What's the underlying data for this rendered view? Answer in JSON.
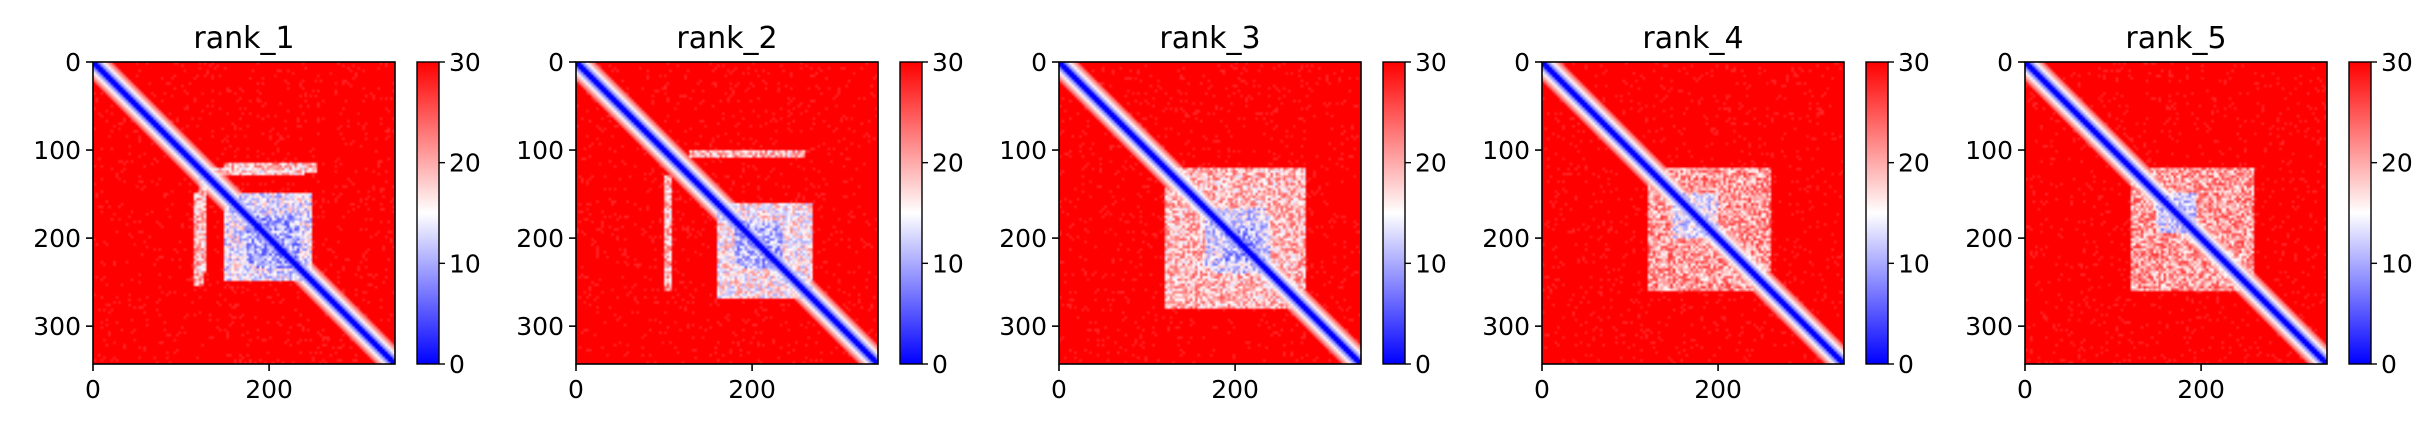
{
  "chart_data": [
    {
      "type": "heatmap",
      "title": "rank_1",
      "matrix_size": 343,
      "xlim": [
        0,
        343
      ],
      "ylim": [
        343,
        0
      ],
      "x_ticks": [
        0,
        200
      ],
      "y_ticks": [
        0,
        100,
        200,
        300
      ],
      "colorbar": {
        "min": 0,
        "max": 30,
        "ticks": [
          0,
          10,
          20,
          30
        ],
        "colormap": "bwr"
      },
      "features": {
        "diagonal": true,
        "blue_blocks": [
          {
            "x0": 150,
            "x1": 250,
            "y0": 165,
            "y1": 250,
            "value": 8
          },
          {
            "x0": 175,
            "x1": 235,
            "y0": 185,
            "y1": 230,
            "value": 4
          },
          {
            "x0": 120,
            "x1": 130,
            "y0": 120,
            "y1": 240,
            "value": 12
          },
          {
            "x0": 150,
            "x1": 255,
            "y0": 115,
            "y1": 125,
            "value": 13
          }
        ]
      }
    },
    {
      "type": "heatmap",
      "title": "rank_2",
      "matrix_size": 343,
      "xlim": [
        0,
        343
      ],
      "ylim": [
        343,
        0
      ],
      "x_ticks": [
        0,
        200
      ],
      "y_ticks": [
        0,
        100,
        200,
        300
      ],
      "colorbar": {
        "min": 0,
        "max": 30,
        "ticks": [
          0,
          10,
          20,
          30
        ],
        "colormap": "bwr"
      },
      "features": {
        "diagonal": true,
        "blue_blocks": [
          {
            "x0": 160,
            "x1": 265,
            "y0": 160,
            "y1": 270,
            "value": 10
          },
          {
            "x0": 180,
            "x1": 235,
            "y0": 185,
            "y1": 230,
            "value": 5
          },
          {
            "x0": 100,
            "x1": 110,
            "y0": 130,
            "y1": 260,
            "value": 13
          }
        ]
      }
    },
    {
      "type": "heatmap",
      "title": "rank_3",
      "matrix_size": 343,
      "xlim": [
        0,
        343
      ],
      "ylim": [
        343,
        0
      ],
      "x_ticks": [
        0,
        200
      ],
      "y_ticks": [
        0,
        100,
        200,
        300
      ],
      "colorbar": {
        "min": 0,
        "max": 30,
        "ticks": [
          0,
          10,
          20,
          30
        ],
        "colormap": "bwr"
      },
      "features": {
        "diagonal": true,
        "blue_blocks": [
          {
            "x0": 120,
            "x1": 280,
            "y0": 120,
            "y1": 280,
            "value": 13
          },
          {
            "x0": 165,
            "x1": 240,
            "y0": 175,
            "y1": 235,
            "value": 7
          },
          {
            "x0": 190,
            "x1": 225,
            "y0": 190,
            "y1": 225,
            "value": 4
          }
        ]
      }
    },
    {
      "type": "heatmap",
      "title": "rank_4",
      "matrix_size": 343,
      "xlim": [
        0,
        343
      ],
      "ylim": [
        343,
        0
      ],
      "x_ticks": [
        0,
        200
      ],
      "y_ticks": [
        0,
        100,
        200,
        300
      ],
      "colorbar": {
        "min": 0,
        "max": 30,
        "ticks": [
          0,
          10,
          20,
          30
        ],
        "colormap": "bwr"
      },
      "features": {
        "diagonal": true,
        "blue_blocks": [
          {
            "x0": 120,
            "x1": 260,
            "y0": 120,
            "y1": 260,
            "value": 15
          },
          {
            "x0": 150,
            "x1": 200,
            "y0": 150,
            "y1": 200,
            "value": 8
          }
        ]
      }
    },
    {
      "type": "heatmap",
      "title": "rank_5",
      "matrix_size": 343,
      "xlim": [
        0,
        343
      ],
      "ylim": [
        343,
        0
      ],
      "x_ticks": [
        0,
        200
      ],
      "y_ticks": [
        0,
        100,
        200,
        300
      ],
      "colorbar": {
        "min": 0,
        "max": 30,
        "ticks": [
          0,
          10,
          20,
          30
        ],
        "colormap": "bwr"
      },
      "features": {
        "diagonal": true,
        "blue_blocks": [
          {
            "x0": 120,
            "x1": 260,
            "y0": 120,
            "y1": 260,
            "value": 15
          },
          {
            "x0": 150,
            "x1": 195,
            "y0": 150,
            "y1": 190,
            "value": 7
          }
        ]
      }
    }
  ]
}
